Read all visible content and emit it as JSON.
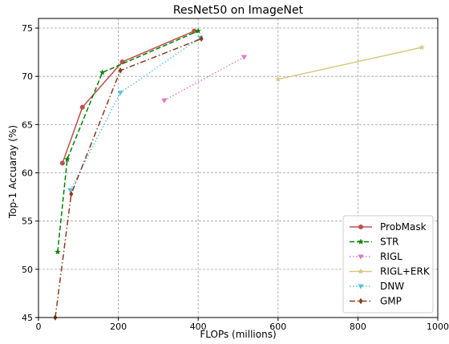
{
  "chart_data": {
    "type": "line",
    "title": "ResNet50 on ImageNet",
    "xlabel": "FLOPs (millions)",
    "ylabel": "Top-1 Accuaray (%)",
    "xlim": [
      0,
      1000
    ],
    "ylim": [
      45,
      76
    ],
    "xticks": [
      0,
      200,
      400,
      600,
      800,
      1000
    ],
    "yticks": [
      45,
      50,
      55,
      60,
      65,
      70,
      75
    ],
    "grid": true,
    "grid_style": "dashed",
    "legend_position": "lower right",
    "series": [
      {
        "name": "ProbMask",
        "color": "#c0504d",
        "linestyle": "solid",
        "marker": "circle",
        "x": [
          60,
          110,
          210,
          390
        ],
        "y": [
          61.0,
          66.8,
          71.5,
          74.7
        ]
      },
      {
        "name": "STR",
        "color": "#008000",
        "linestyle": "dashed",
        "marker": "star",
        "x": [
          48,
          72,
          160,
          400
        ],
        "y": [
          51.8,
          61.4,
          70.4,
          74.7
        ]
      },
      {
        "name": "RIGL",
        "color": "#e377c2",
        "linestyle": "dotted",
        "marker": "triangle-down",
        "x": [
          315,
          515
        ],
        "y": [
          67.5,
          72.0
        ]
      },
      {
        "name": "RIGL+ERK",
        "color": "#d4ca7f",
        "linestyle": "solid",
        "marker": "star",
        "x": [
          600,
          960
        ],
        "y": [
          69.7,
          73.0
        ]
      },
      {
        "name": "DNW",
        "color": "#5bc0de",
        "linestyle": "dotted",
        "marker": "triangle-down",
        "x": [
          80,
          205,
          405
        ],
        "y": [
          58.2,
          68.3,
          74.0
        ]
      },
      {
        "name": "GMP",
        "color": "#8b3a1a",
        "linestyle": "dashdot",
        "marker": "diamond",
        "x": [
          42,
          82,
          205,
          408
        ],
        "y": [
          45.0,
          57.8,
          70.6,
          73.9
        ]
      }
    ]
  }
}
